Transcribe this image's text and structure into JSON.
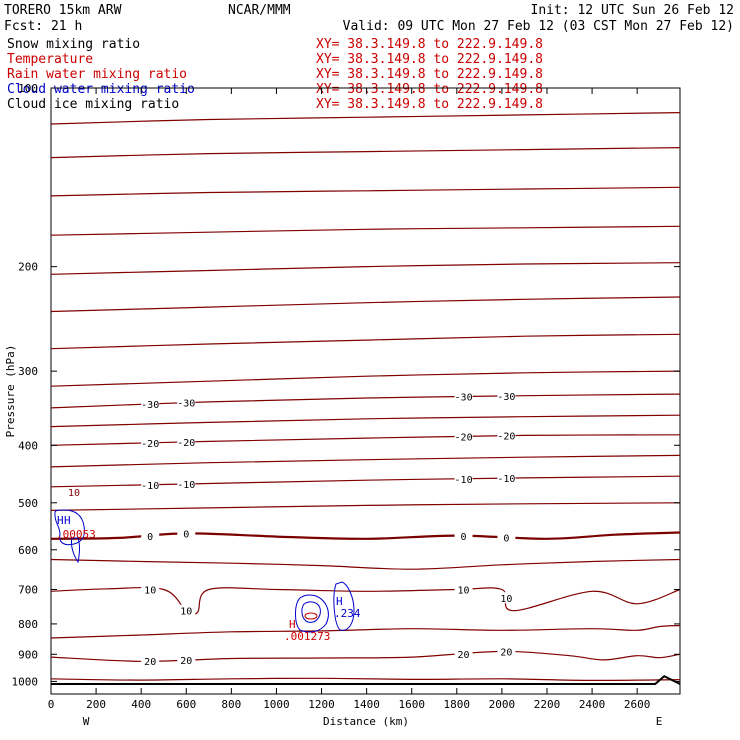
{
  "header": {
    "model": "TORERO  15km ARW",
    "org": "NCAR/MMM",
    "init": "Init: 12 UTC Sun 26 Feb 12",
    "fcst": "Fcst:   21 h",
    "valid": "Valid: 09 UTC Mon 27 Feb 12 (03 CST Mon 27 Feb 12)"
  },
  "fields": [
    {
      "name": "Snow mixing ratio",
      "color": "#000000",
      "xy": "XY=  38.3.149.8 to 222.9.149.8"
    },
    {
      "name": "Temperature",
      "color": "#cc0000",
      "xy": "XY=  38.3.149.8 to 222.9.149.8"
    },
    {
      "name": "Rain water mixing ratio",
      "color": "#cc0000",
      "xy": "XY=  38.3.149.8 to 222.9.149.8"
    },
    {
      "name": "Cloud water mixing ratio",
      "color": "#0000cc",
      "xy": "XY=  38.3.149.8 to 222.9.149.8"
    },
    {
      "name": "Cloud ice mixing ratio",
      "color": "#000000",
      "xy": "XY=  38.3.149.8 to 222.9.149.8"
    }
  ],
  "end_labels": {
    "left": "W",
    "right": "E"
  },
  "chart_data": {
    "type": "line",
    "xlabel": "Distance (km)",
    "ylabel": "Pressure (hPa)",
    "xlim": [
      0,
      2790
    ],
    "ylim": [
      1050,
      100
    ],
    "y_scale": "log",
    "x_ticks": [
      0,
      200,
      400,
      600,
      800,
      1000,
      1200,
      1400,
      1600,
      1800,
      2000,
      2200,
      2400,
      2600
    ],
    "y_ticks": [
      100,
      200,
      300,
      400,
      500,
      600,
      700,
      800,
      900,
      1000
    ],
    "temperature_contour_color": "#800000",
    "freezing_line_color": "#7a0000",
    "isotherms": [
      {
        "x": [
          0,
          700,
          1400,
          2100,
          2790
        ],
        "p": [
          115,
          113,
          112,
          111,
          110
        ]
      },
      {
        "x": [
          0,
          700,
          1400,
          2100,
          2790
        ],
        "p": [
          131,
          129,
          128,
          127,
          126
        ]
      },
      {
        "x": [
          0,
          700,
          1400,
          2100,
          2790
        ],
        "p": [
          152,
          150,
          149,
          148,
          147
        ]
      },
      {
        "x": [
          0,
          700,
          1400,
          2100,
          2790
        ],
        "p": [
          177,
          175,
          173,
          172,
          171
        ]
      },
      {
        "x": [
          0,
          700,
          1400,
          2100,
          2790
        ],
        "p": [
          206,
          203,
          200,
          198,
          197
        ]
      },
      {
        "x": [
          0,
          700,
          1400,
          2100,
          2790
        ],
        "p": [
          238,
          234,
          230,
          227,
          225
        ]
      },
      {
        "x": [
          0,
          700,
          1400,
          2100,
          2790
        ],
        "p": [
          275,
          270,
          266,
          262,
          260
        ]
      },
      {
        "x": [
          0,
          700,
          1400,
          2100,
          2790
        ],
        "p": [
          318,
          312,
          306,
          302,
          300
        ]
      },
      {
        "label": "-30",
        "x": [
          0,
          700,
          1400,
          2100,
          2790
        ],
        "p": [
          346,
          338,
          333,
          330,
          328
        ]
      },
      {
        "x": [
          0,
          700,
          1400,
          2100,
          2790
        ],
        "p": [
          372,
          366,
          361,
          358,
          356
        ]
      },
      {
        "label": "-20",
        "x": [
          0,
          700,
          1400,
          2100,
          2790
        ],
        "p": [
          400,
          394,
          389,
          385,
          384
        ]
      },
      {
        "x": [
          0,
          700,
          1400,
          2100,
          2790
        ],
        "p": [
          435,
          428,
          423,
          419,
          416
        ]
      },
      {
        "label": "-10",
        "x": [
          0,
          700,
          1400,
          2100,
          2790
        ],
        "p": [
          470,
          464,
          458,
          454,
          451
        ]
      },
      {
        "x": [
          0,
          700,
          1400,
          2100,
          2790
        ],
        "p": [
          515,
          510,
          505,
          502,
          500
        ]
      },
      {
        "label": "0",
        "x": [
          0,
          300,
          600,
          1000,
          1400,
          1800,
          2200,
          2500,
          2790
        ],
        "p": [
          575,
          573,
          563,
          570,
          575,
          568,
          575,
          566,
          561
        ]
      },
      {
        "x": [
          0,
          400,
          800,
          1200,
          1600,
          2000,
          2400,
          2790
        ],
        "p": [
          623,
          628,
          632,
          638,
          647,
          636,
          628,
          623
        ]
      },
      {
        "label": "10",
        "x": [
          0,
          250,
          500,
          600,
          650,
          700,
          1000,
          1400,
          1800,
          2000,
          2050,
          2400,
          2600,
          2790
        ],
        "p": [
          705,
          698,
          700,
          760,
          765,
          700,
          700,
          705,
          700,
          700,
          760,
          705,
          740,
          700
        ]
      },
      {
        "x": [
          0,
          400,
          800,
          1200,
          1600,
          2000,
          2400,
          2600,
          2700,
          2790
        ],
        "p": [
          845,
          835,
          825,
          822,
          815,
          820,
          815,
          820,
          808,
          805
        ]
      },
      {
        "label": "20",
        "x": [
          0,
          400,
          800,
          1200,
          1600,
          2000,
          2300,
          2450,
          2600,
          2700,
          2790
        ],
        "p": [
          910,
          925,
          915,
          913,
          910,
          890,
          905,
          920,
          905,
          912,
          900
        ]
      },
      {
        "x": [
          0,
          400,
          800,
          1200,
          1600,
          2000,
          2400,
          2790
        ],
        "p": [
          990,
          995,
          990,
          988,
          992,
          990,
          996,
          993
        ]
      }
    ],
    "annotations": [
      {
        "text": "10",
        "color": "#800000"
      },
      {
        "text": "H",
        "color": "#0000cc"
      },
      {
        "text": "H",
        "color": "#0000cc"
      },
      {
        "text": ".00053",
        "color": "#cc0000"
      },
      {
        "text": "H",
        "color": "#0000cc"
      },
      {
        "text": ".234",
        "color": "#0000cc"
      },
      {
        "text": "H",
        "color": "#cc0000"
      },
      {
        "text": ".001273",
        "color": "#cc0000"
      }
    ],
    "terrain": {
      "x": [
        0,
        2680,
        2720,
        2790
      ],
      "p": [
        1010,
        1010,
        980,
        1010
      ]
    }
  }
}
